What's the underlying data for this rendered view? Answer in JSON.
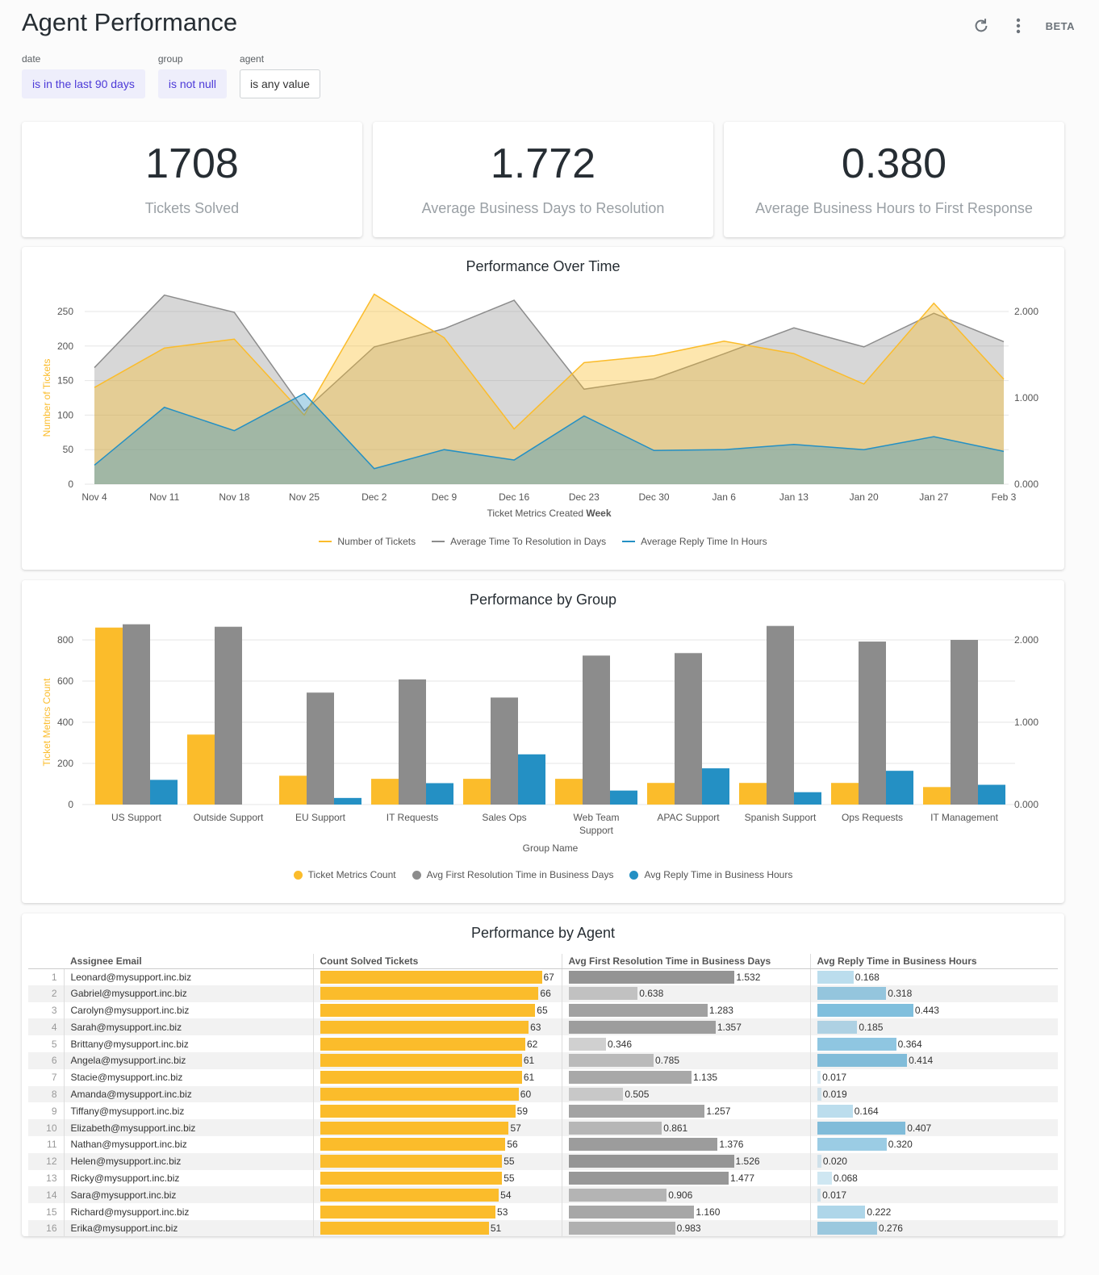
{
  "header": {
    "title": "Agent Performance",
    "beta": "BETA"
  },
  "filters": [
    {
      "label": "date",
      "value": "is in the last 90 days",
      "active": true
    },
    {
      "label": "group",
      "value": "is not null",
      "active": true
    },
    {
      "label": "agent",
      "value": "is any value",
      "active": false
    }
  ],
  "kpis": [
    {
      "value": "1708",
      "label": "Tickets Solved"
    },
    {
      "value": "1.772",
      "label": "Average Business Days to Resolution"
    },
    {
      "value": "0.380",
      "label": "Average Business Hours to First Response"
    }
  ],
  "colors": {
    "yellow": "#fbbc2b",
    "gray": "#8c8c8c",
    "blue": "#2490c4",
    "accent": "#4c3ad8"
  },
  "time_chart": {
    "title": "Performance Over Time",
    "legend": [
      "Number of Tickets",
      "Average Time To Resolution in Days",
      "Average Reply Time In Hours"
    ]
  },
  "group_chart": {
    "title": "Performance by Group",
    "legend": [
      "Ticket Metrics Count",
      "Avg First Resolution Time in Business Days",
      "Avg Reply Time in Business Hours"
    ]
  },
  "agent_table": {
    "title": "Performance by Agent",
    "headers": [
      "Assignee Email",
      "Count Solved Tickets",
      "Avg First Resolution Time in Business Days",
      "Avg Reply Time in Business Hours"
    ],
    "rows": [
      {
        "email": "Leonard@mysupport.inc.biz",
        "count": "67",
        "res": "1.532",
        "reply": "0.168"
      },
      {
        "email": "Gabriel@mysupport.inc.biz",
        "count": "66",
        "res": "0.638",
        "reply": "0.318"
      },
      {
        "email": "Carolyn@mysupport.inc.biz",
        "count": "65",
        "res": "1.283",
        "reply": "0.443"
      },
      {
        "email": "Sarah@mysupport.inc.biz",
        "count": "63",
        "res": "1.357",
        "reply": "0.185"
      },
      {
        "email": "Brittany@mysupport.inc.biz",
        "count": "62",
        "res": "0.346",
        "reply": "0.364"
      },
      {
        "email": "Angela@mysupport.inc.biz",
        "count": "61",
        "res": "0.785",
        "reply": "0.414"
      },
      {
        "email": "Stacie@mysupport.inc.biz",
        "count": "61",
        "res": "1.135",
        "reply": "0.017"
      },
      {
        "email": "Amanda@mysupport.inc.biz",
        "count": "60",
        "res": "0.505",
        "reply": "0.019"
      },
      {
        "email": "Tiffany@mysupport.inc.biz",
        "count": "59",
        "res": "1.257",
        "reply": "0.164"
      },
      {
        "email": "Elizabeth@mysupport.inc.biz",
        "count": "57",
        "res": "0.861",
        "reply": "0.407"
      },
      {
        "email": "Nathan@mysupport.inc.biz",
        "count": "56",
        "res": "1.376",
        "reply": "0.320"
      },
      {
        "email": "Helen@mysupport.inc.biz",
        "count": "55",
        "res": "1.526",
        "reply": "0.020"
      },
      {
        "email": "Ricky@mysupport.inc.biz",
        "count": "55",
        "res": "1.477",
        "reply": "0.068"
      },
      {
        "email": "Sara@mysupport.inc.biz",
        "count": "54",
        "res": "0.906",
        "reply": "0.017"
      },
      {
        "email": "Richard@mysupport.inc.biz",
        "count": "53",
        "res": "1.160",
        "reply": "0.222"
      },
      {
        "email": "Erika@mysupport.inc.biz",
        "count": "51",
        "res": "0.983",
        "reply": "0.276"
      }
    ]
  },
  "chart_data": [
    {
      "type": "area",
      "title": "Performance Over Time",
      "xlabel": "Ticket Metrics Created Week",
      "ylabel": "Number of Tickets",
      "ylim": [
        0,
        250
      ],
      "y_ticks": [
        0,
        50,
        100,
        150,
        200,
        250
      ],
      "y2lim": [
        0,
        2
      ],
      "y2_ticks": [
        "0.000",
        "1.000",
        "2.000"
      ],
      "categories": [
        "Nov 4",
        "Nov 11",
        "Nov 18",
        "Nov 25",
        "Dec 2",
        "Dec 9",
        "Dec 16",
        "Dec 23",
        "Dec 30",
        "Jan 6",
        "Jan 13",
        "Jan 20",
        "Jan 27",
        "Feb 3"
      ],
      "series": [
        {
          "name": "Number of Tickets",
          "axis": "left",
          "values": [
            140,
            197,
            210,
            100,
            275,
            212,
            80,
            176,
            186,
            207,
            189,
            145,
            262,
            152
          ]
        },
        {
          "name": "Average Time To Resolution in Days",
          "axis": "right",
          "values": [
            1.35,
            2.19,
            1.99,
            0.85,
            1.59,
            1.8,
            2.13,
            1.1,
            1.22,
            1.51,
            1.81,
            1.59,
            1.98,
            1.65
          ]
        },
        {
          "name": "Average Reply Time In Hours",
          "axis": "right",
          "values": [
            0.22,
            0.89,
            0.62,
            1.05,
            0.18,
            0.4,
            0.28,
            0.79,
            0.39,
            0.4,
            0.46,
            0.4,
            0.55,
            0.38
          ]
        }
      ],
      "legend_position": "bottom",
      "grid": true
    },
    {
      "type": "bar",
      "title": "Performance by Group",
      "xlabel": "Group Name",
      "ylabel": "Ticket Metrics Count",
      "ylim": [
        0,
        800
      ],
      "y_ticks": [
        0,
        200,
        400,
        600,
        800
      ],
      "y2lim": [
        0,
        2
      ],
      "y2_ticks": [
        "0.000",
        "1.000",
        "2.000"
      ],
      "categories": [
        "US Support",
        "Outside Support",
        "EU Support",
        "IT Requests",
        "Sales Ops",
        "Web Team Support",
        "APAC Support",
        "Spanish Support",
        "Ops Requests",
        "IT Management"
      ],
      "series": [
        {
          "name": "Ticket Metrics Count",
          "axis": "left",
          "values": [
            860,
            340,
            140,
            125,
            125,
            125,
            105,
            105,
            105,
            85
          ]
        },
        {
          "name": "Avg First Resolution Time in Business Days",
          "axis": "right",
          "values": [
            2.19,
            2.16,
            1.36,
            1.52,
            1.3,
            1.81,
            1.84,
            2.17,
            1.98,
            2.0
          ]
        },
        {
          "name": "Avg Reply Time in Business Hours",
          "axis": "right",
          "values": [
            0.3,
            0.0,
            0.08,
            0.26,
            0.61,
            0.17,
            0.44,
            0.15,
            0.41,
            0.24
          ]
        }
      ],
      "legend_position": "bottom",
      "grid": true
    }
  ]
}
